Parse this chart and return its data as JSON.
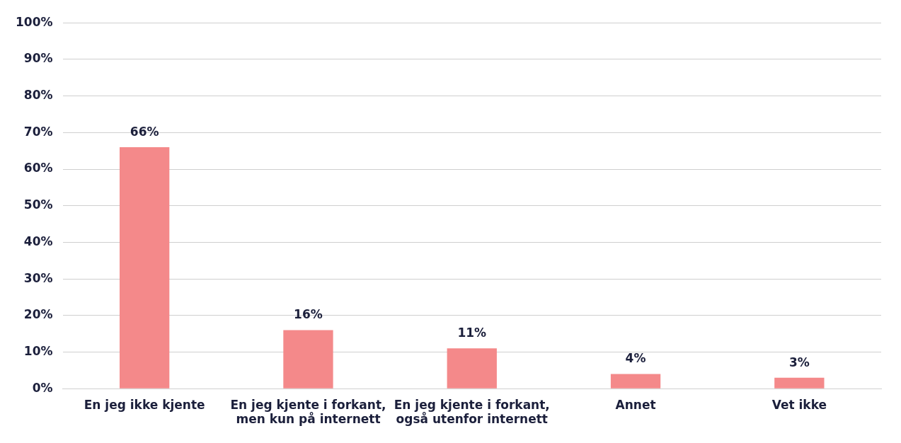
{
  "chart_data": {
    "type": "bar",
    "categories": [
      "En jeg ikke kjente",
      "En jeg kjente i forkant, men kun på internett",
      "En jeg kjente i forkant, også utenfor internett",
      "Annet",
      "Vet ikke"
    ],
    "values": [
      66,
      16,
      11,
      4,
      3
    ],
    "color": "#f4898a",
    "ylim": [
      0,
      100
    ],
    "yticks": [
      {
        "value": 0,
        "label": "0%"
      },
      {
        "value": 10,
        "label": "10%"
      },
      {
        "value": 20,
        "label": "20%"
      },
      {
        "value": 30,
        "label": "30%"
      },
      {
        "value": 40,
        "label": "40%"
      },
      {
        "value": 50,
        "label": "50%"
      },
      {
        "value": 60,
        "label": "60%"
      },
      {
        "value": 70,
        "label": "70%"
      },
      {
        "value": 80,
        "label": "80%"
      },
      {
        "value": 90,
        "label": "90%"
      },
      {
        "value": 100,
        "label": "100%"
      }
    ],
    "value_labels": [
      "66%",
      "16%",
      "11%",
      "4%",
      "3%"
    ],
    "grid": "y",
    "legend": false
  }
}
